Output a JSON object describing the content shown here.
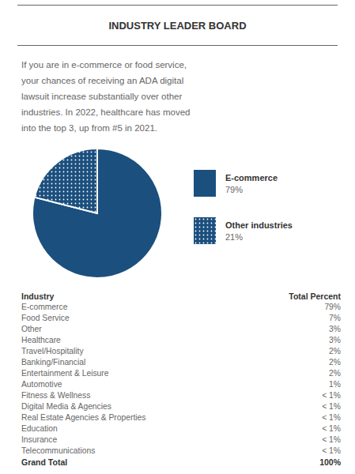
{
  "chart_data": {
    "type": "pie",
    "title": "INDUSTRY LEADER BOARD",
    "annotations": [
      "If you are in e-commerce or food service,",
      "your chances of receiving an ADA digital",
      "lawsuit increase substantially over other",
      "industries. In 2022, healthcare has moved",
      "into the top 3, up from #5 in 2021."
    ],
    "categories": [
      "E-commerce",
      "Other industries"
    ],
    "values": [
      79,
      21
    ],
    "value_labels": [
      "79%",
      "21%"
    ],
    "color": "#1b4f7e",
    "table": {
      "headers": [
        "Industry",
        "Total Percent"
      ],
      "rows": [
        [
          "E-commerce",
          "79%"
        ],
        [
          "Food Service",
          "7%"
        ],
        [
          "Other",
          "3%"
        ],
        [
          "Healthcare",
          "3%"
        ],
        [
          "Travel/Hospitality",
          "2%"
        ],
        [
          "Banking/Financial",
          "2%"
        ],
        [
          "Entertainment & Leisure",
          "2%"
        ],
        [
          "Automotive",
          "1%"
        ],
        [
          "Fitness & Wellness",
          "< 1%"
        ],
        [
          "Digital Media & Agencies",
          "< 1%"
        ],
        [
          "Real Estate Agencies & Properties",
          "< 1%"
        ],
        [
          "Education",
          "< 1%"
        ],
        [
          "Insurance",
          "< 1%"
        ],
        [
          "Telecommunications",
          "< 1%"
        ]
      ],
      "total": [
        "Grand Total",
        "100%"
      ]
    }
  }
}
